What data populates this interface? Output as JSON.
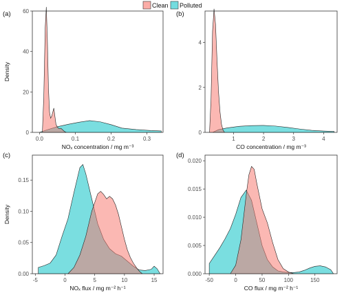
{
  "legend": {
    "items": [
      {
        "label": "Clean",
        "color": "#F8766D"
      },
      {
        "label": "Polluted",
        "color": "#00BFC4"
      }
    ]
  },
  "chart_data": [
    {
      "type": "area",
      "panel_label": "(a)",
      "xlabel": "NOₓ concentration / mg m⁻³",
      "ylabel": "Density",
      "xlim": [
        -0.02,
        0.345
      ],
      "ylim": [
        0,
        60
      ],
      "xticks": [
        0.0,
        0.1,
        0.2,
        0.3
      ],
      "xticklabels": [
        "0.0",
        "0.1",
        "0.2",
        "0.3"
      ],
      "yticks": [
        0,
        20,
        40,
        60
      ],
      "yticklabels": [
        "0",
        "20",
        "40",
        "60"
      ],
      "series": [
        {
          "name": "Polluted",
          "x": [
            0.0,
            0.02,
            0.05,
            0.08,
            0.11,
            0.14,
            0.17,
            0.2,
            0.23,
            0.27,
            0.31,
            0.34
          ],
          "y": [
            0,
            1.2,
            2.8,
            4.0,
            5.0,
            5.8,
            5.2,
            3.8,
            2.1,
            1.4,
            0.9,
            0.7
          ]
        },
        {
          "name": "Clean",
          "x": [
            0.008,
            0.012,
            0.016,
            0.019,
            0.022,
            0.025,
            0.028,
            0.031,
            0.034,
            0.037,
            0.04,
            0.043,
            0.046,
            0.05,
            0.055,
            0.06,
            0.065,
            0.07,
            0.075
          ],
          "y": [
            0,
            18,
            52,
            62,
            46,
            22,
            10,
            7,
            8,
            10,
            12,
            8,
            4,
            2.5,
            1.8,
            2.0,
            1.2,
            0.4,
            0
          ]
        }
      ]
    },
    {
      "type": "area",
      "panel_label": "(b)",
      "xlabel": "CO concentration / mg m⁻³",
      "ylabel": "",
      "xlim": [
        0.05,
        4.45
      ],
      "ylim": [
        0,
        5.4
      ],
      "xticks": [
        1,
        2,
        3,
        4
      ],
      "xticklabels": [
        "1",
        "2",
        "3",
        "4"
      ],
      "yticks": [
        0,
        2,
        4
      ],
      "yticklabels": [
        "0",
        "2",
        "4"
      ],
      "series": [
        {
          "name": "Polluted",
          "x": [
            0.3,
            0.5,
            0.8,
            1.2,
            1.6,
            2.0,
            2.4,
            2.8,
            3.2,
            3.6,
            4.0,
            4.35
          ],
          "y": [
            0,
            0.12,
            0.2,
            0.27,
            0.3,
            0.31,
            0.28,
            0.22,
            0.15,
            0.09,
            0.06,
            0.04
          ]
        },
        {
          "name": "Clean",
          "x": [
            0.2,
            0.25,
            0.3,
            0.35,
            0.4,
            0.45,
            0.5,
            0.55,
            0.6,
            0.65,
            0.7
          ],
          "y": [
            0,
            1.5,
            4.5,
            5.5,
            4.8,
            3.2,
            1.8,
            0.9,
            0.35,
            0.1,
            0
          ]
        }
      ]
    },
    {
      "type": "area",
      "panel_label": "(c)",
      "xlabel": "NOₓ flux / mg m⁻² h⁻¹",
      "ylabel": "Density",
      "xlim": [
        -5.5,
        16.5
      ],
      "ylim": [
        0,
        0.19
      ],
      "xticks": [
        -5,
        0,
        5,
        10,
        15
      ],
      "xticklabels": [
        "-5",
        "0",
        "5",
        "10",
        "15"
      ],
      "yticks": [
        0.0,
        0.05,
        0.1,
        0.15
      ],
      "yticklabels": [
        "0.00",
        "0.05",
        "0.10",
        "0.15"
      ],
      "series": [
        {
          "name": "Polluted",
          "x": [
            -4.5,
            -3.5,
            -2.5,
            -1.5,
            -0.5,
            0.5,
            1.5,
            2.5,
            3.0,
            3.5,
            4.5,
            5.5,
            6.5,
            7.5,
            8.5,
            9.5,
            10.5,
            11.5,
            12.5,
            13.5,
            14.5,
            15.0,
            15.5,
            16.0
          ],
          "y": [
            0.01,
            0.013,
            0.017,
            0.03,
            0.06,
            0.088,
            0.13,
            0.17,
            0.175,
            0.16,
            0.12,
            0.08,
            0.055,
            0.04,
            0.032,
            0.028,
            0.02,
            0.012,
            0.006,
            0.005,
            0.007,
            0.012,
            0.008,
            0.0
          ]
        },
        {
          "name": "Clean",
          "x": [
            0.5,
            1.5,
            2.5,
            3.5,
            4.5,
            5.5,
            6.0,
            6.5,
            7.0,
            7.5,
            8.0,
            8.5,
            9.0,
            9.5,
            10.0,
            10.5,
            11.0,
            11.5,
            12.0,
            12.5,
            13.0
          ],
          "y": [
            0.0,
            0.01,
            0.03,
            0.06,
            0.1,
            0.128,
            0.132,
            0.127,
            0.12,
            0.124,
            0.12,
            0.11,
            0.095,
            0.075,
            0.055,
            0.038,
            0.026,
            0.017,
            0.01,
            0.004,
            0.0
          ]
        }
      ]
    },
    {
      "type": "area",
      "panel_label": "(d)",
      "xlabel": "CO flux / mg m⁻² h⁻¹",
      "ylabel": "",
      "xlim": [
        -58,
        192
      ],
      "ylim": [
        0,
        0.021
      ],
      "xticks": [
        -50,
        0,
        50,
        100,
        150
      ],
      "xticklabels": [
        "-50",
        "0",
        "50",
        "100",
        "150"
      ],
      "yticks": [
        0.0,
        0.005,
        0.01,
        0.015,
        0.02
      ],
      "yticklabels": [
        "0.000",
        "0.005",
        "0.010",
        "0.015",
        "0.020"
      ],
      "series": [
        {
          "name": "Polluted",
          "x": [
            -50,
            -40,
            -30,
            -20,
            -10,
            0,
            10,
            20,
            30,
            40,
            50,
            60,
            70,
            80,
            90,
            100,
            110,
            120,
            130,
            140,
            150,
            160,
            170,
            180,
            185
          ],
          "y": [
            0.0018,
            0.0032,
            0.0046,
            0.0062,
            0.008,
            0.0105,
            0.0135,
            0.0148,
            0.013,
            0.009,
            0.005,
            0.0025,
            0.0012,
            0.0005,
            0.0003,
            0.0002,
            0.0002,
            0.0003,
            0.0006,
            0.001,
            0.0013,
            0.0014,
            0.0012,
            0.0007,
            0.0
          ]
        },
        {
          "name": "Clean",
          "x": [
            -10,
            0,
            10,
            20,
            25,
            30,
            35,
            40,
            50,
            60,
            70,
            80,
            90,
            100,
            110
          ],
          "y": [
            0.0,
            0.0015,
            0.006,
            0.014,
            0.0175,
            0.019,
            0.0185,
            0.016,
            0.0115,
            0.009,
            0.0055,
            0.0025,
            0.0009,
            0.0003,
            0.0
          ]
        }
      ]
    }
  ]
}
